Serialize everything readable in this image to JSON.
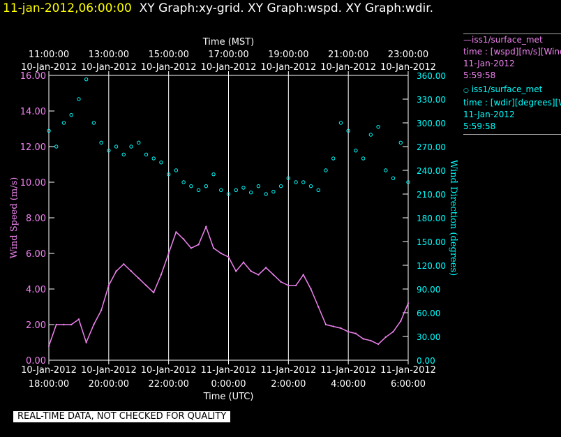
{
  "header": {
    "timestamp": "11-jan-2012,06:00:00",
    "titles": "XY Graph:xy-grid.  XY Graph:wspd.  XY Graph:wdir."
  },
  "legend": {
    "items": [
      {
        "marker": "line",
        "line1": "—iss1/surface_met",
        "line2": "time : [wspd][m/s][Wind",
        "line3": "11-Jan-2012",
        "line4": "5:59:58",
        "color": "#ee82ee"
      },
      {
        "marker": "circle",
        "line1": "iss1/surface_met",
        "line2": "time : [wdir][degrees][W",
        "line3": "11-Jan-2012",
        "line4": "5:59:58",
        "color": "#00ffff"
      }
    ]
  },
  "banner": "REAL-TIME DATA, NOT CHECKED FOR QUALITY",
  "chart_data": {
    "type": "line",
    "top_axis": {
      "label": "Time (MST)",
      "ticks": [
        {
          "time": "11:00:00",
          "date": "10-Jan-2012"
        },
        {
          "time": "13:00:00",
          "date": "10-Jan-2012"
        },
        {
          "time": "15:00:00",
          "date": "10-Jan-2012"
        },
        {
          "time": "17:00:00",
          "date": "10-Jan-2012"
        },
        {
          "time": "19:00:00",
          "date": "10-Jan-2012"
        },
        {
          "time": "21:00:00",
          "date": "10-Jan-2012"
        },
        {
          "time": "23:00:00",
          "date": "10-Jan-2012"
        }
      ]
    },
    "bottom_axis": {
      "label": "Time (UTC)",
      "xlim": [
        "2012-01-10T18:00:00",
        "2012-01-11T06:00:00"
      ],
      "ticks": [
        {
          "date": "10-Jan-2012",
          "time": "18:00:00"
        },
        {
          "date": "10-Jan-2012",
          "time": "20:00:00"
        },
        {
          "date": "10-Jan-2012",
          "time": "22:00:00"
        },
        {
          "date": "11-Jan-2012",
          "time": "0:00:00"
        },
        {
          "date": "11-Jan-2012",
          "time": "2:00:00"
        },
        {
          "date": "11-Jan-2012",
          "time": "4:00:00"
        },
        {
          "date": "11-Jan-2012",
          "time": "6:00:00"
        }
      ]
    },
    "grid": true,
    "left_axis": {
      "label": "Wind Speed (m/s)",
      "color": "#ee82ee",
      "ylim": [
        0,
        16
      ],
      "ticks": [
        "0.00",
        "2.00",
        "4.00",
        "6.00",
        "8.00",
        "10.00",
        "12.00",
        "14.00",
        "16.00"
      ]
    },
    "right_axis": {
      "label": "Wind Direction (degrees)",
      "color": "#00ffff",
      "ylim": [
        0,
        360
      ],
      "ticks": [
        "0.00",
        "30.00",
        "60.00",
        "90.00",
        "120.00",
        "150.00",
        "180.00",
        "210.00",
        "240.00",
        "270.00",
        "300.00",
        "330.00",
        "360.00"
      ]
    },
    "series": [
      {
        "name": "iss1/surface_met wspd",
        "axis": "left",
        "color": "#ee82ee",
        "style": "line",
        "x_hours_utc": [
          18.0,
          18.25,
          18.5,
          18.75,
          19.0,
          19.25,
          19.5,
          19.75,
          20.0,
          20.25,
          20.5,
          20.75,
          21.0,
          21.25,
          21.5,
          21.75,
          22.0,
          22.25,
          22.5,
          22.75,
          23.0,
          23.25,
          23.5,
          23.75,
          24.0,
          24.25,
          24.5,
          24.75,
          25.0,
          25.25,
          25.5,
          25.75,
          26.0,
          26.25,
          26.5,
          26.75,
          27.0,
          27.25,
          27.5,
          27.75,
          28.0,
          28.25,
          28.5,
          28.75,
          29.0,
          29.25,
          29.5,
          29.75,
          30.0
        ],
        "y": [
          0.8,
          2.0,
          2.0,
          2.0,
          2.3,
          1.0,
          2.0,
          2.8,
          4.2,
          5.0,
          5.4,
          5.0,
          4.6,
          4.2,
          3.8,
          4.8,
          6.0,
          7.2,
          6.8,
          6.3,
          6.5,
          7.5,
          6.3,
          6.0,
          5.8,
          5.0,
          5.5,
          5.0,
          4.8,
          5.2,
          4.8,
          4.4,
          4.2,
          4.2,
          4.8,
          4.0,
          3.0,
          2.0,
          1.9,
          1.8,
          1.6,
          1.5,
          1.2,
          1.1,
          0.9,
          1.3,
          1.6,
          2.2,
          3.2
        ]
      },
      {
        "name": "iss1/surface_met wdir",
        "axis": "right",
        "color": "#00ffff",
        "style": "scatter",
        "x_hours_utc": [
          18.0,
          18.25,
          18.5,
          18.75,
          19.0,
          19.25,
          19.5,
          19.75,
          20.0,
          20.25,
          20.5,
          20.75,
          21.0,
          21.25,
          21.5,
          21.75,
          22.0,
          22.25,
          22.5,
          22.75,
          23.0,
          23.25,
          23.5,
          23.75,
          24.0,
          24.25,
          24.5,
          24.75,
          25.0,
          25.25,
          25.5,
          25.75,
          26.0,
          26.25,
          26.5,
          26.75,
          27.0,
          27.25,
          27.5,
          27.75,
          28.0,
          28.25,
          28.5,
          28.75,
          29.0,
          29.25,
          29.5,
          29.75,
          30.0
        ],
        "y": [
          290,
          270,
          300,
          310,
          330,
          355,
          300,
          275,
          265,
          270,
          260,
          270,
          275,
          260,
          255,
          250,
          235,
          240,
          225,
          220,
          215,
          220,
          235,
          215,
          210,
          215,
          218,
          212,
          220,
          210,
          213,
          220,
          230,
          225,
          225,
          220,
          215,
          240,
          255,
          300,
          290,
          265,
          255,
          285,
          295,
          240,
          230,
          275,
          225
        ]
      }
    ]
  }
}
